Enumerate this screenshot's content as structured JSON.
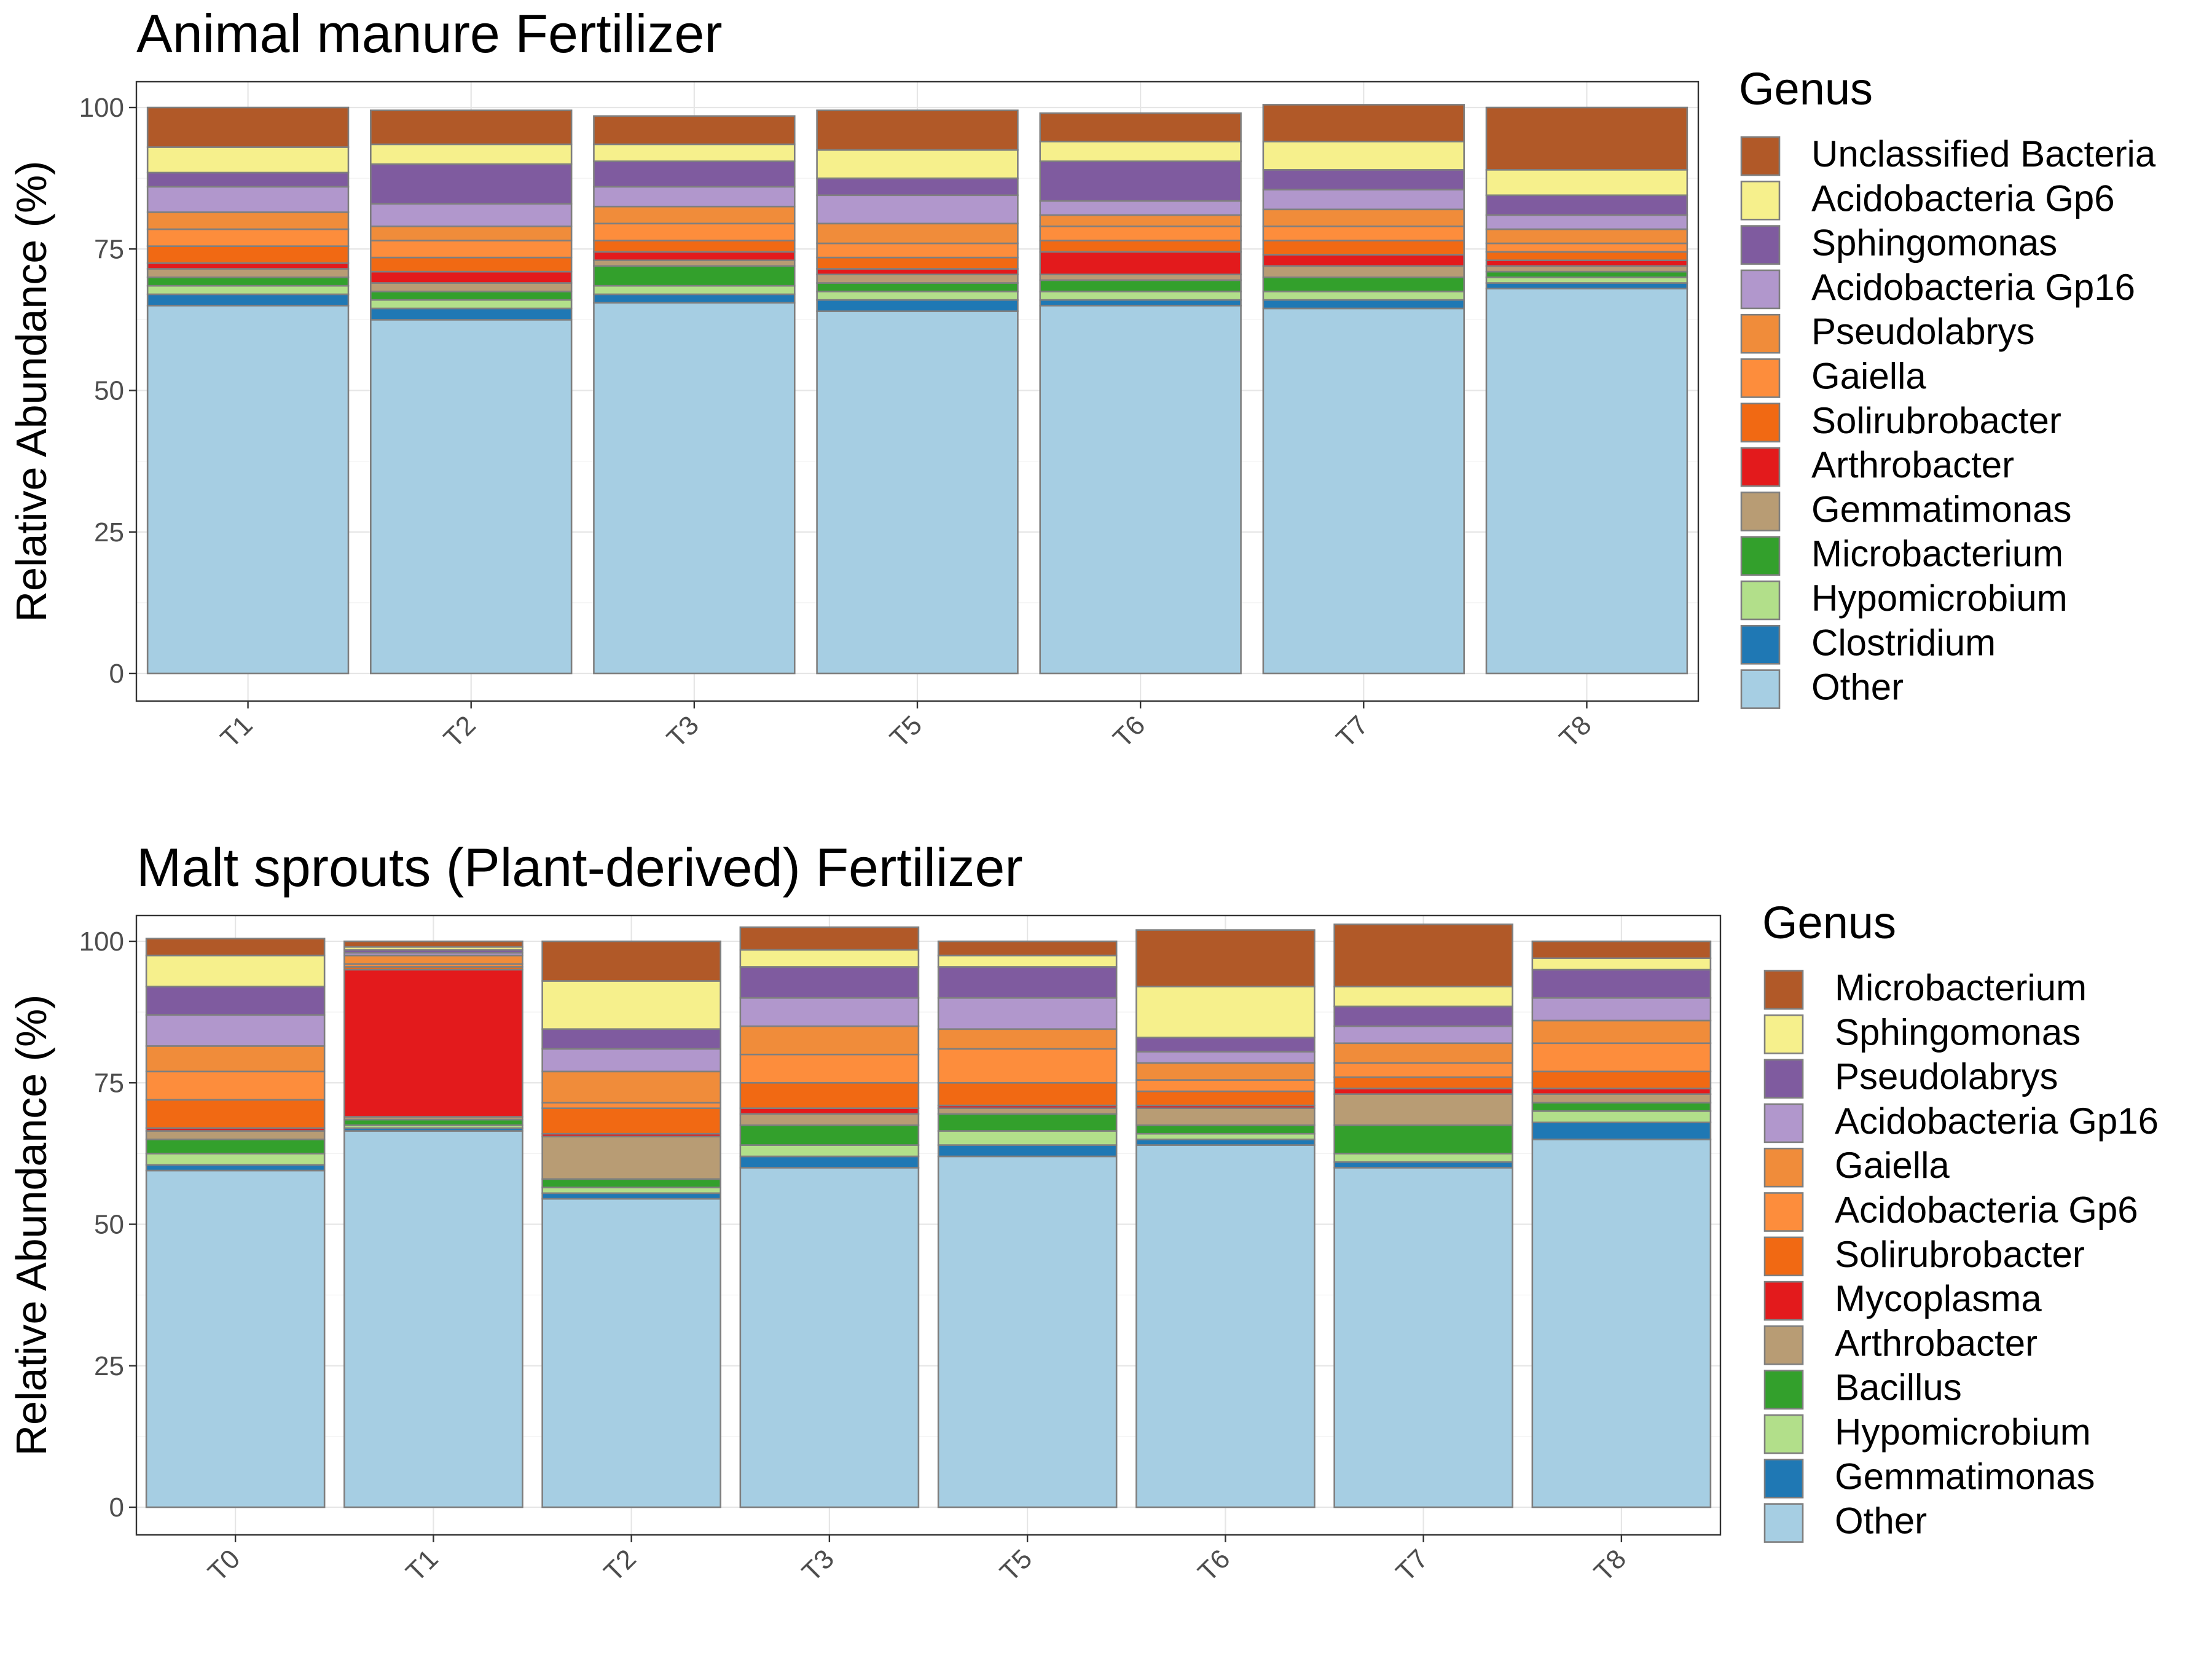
{
  "chart_data": [
    {
      "type": "bar",
      "stacked": true,
      "title": "Animal manure Fertilizer",
      "xlabel": "",
      "ylabel": "Relative Abundance (%)",
      "ylim": [
        0,
        100
      ],
      "yticks": [
        "0",
        "25",
        "50",
        "75",
        "100"
      ],
      "grid": true,
      "legend": {
        "title": "Genus",
        "placement": "right"
      },
      "categories": [
        "T1",
        "T2",
        "T3",
        "T5",
        "T6",
        "T7",
        "T8"
      ],
      "series": [
        {
          "name": "Other",
          "color": "#a6cee3",
          "values": [
            65.0,
            62.5,
            65.5,
            64.0,
            65.0,
            64.5,
            68.0
          ]
        },
        {
          "name": "Clostridium",
          "color": "#1f78b4",
          "values": [
            2.0,
            2.0,
            1.5,
            2.0,
            1.0,
            1.5,
            1.0
          ]
        },
        {
          "name": "Hypomicrobium",
          "color": "#b2df8a",
          "values": [
            1.5,
            1.5,
            1.5,
            1.5,
            1.5,
            1.5,
            1.0
          ]
        },
        {
          "name": "Microbacterium",
          "color": "#33a02c",
          "values": [
            1.5,
            1.5,
            3.5,
            1.5,
            2.0,
            2.5,
            1.0
          ]
        },
        {
          "name": "Gemmatimonas",
          "color": "#b89c74",
          "values": [
            1.5,
            1.5,
            1.0,
            1.5,
            1.0,
            2.0,
            1.0
          ]
        },
        {
          "name": "Arthrobacter",
          "color": "#e31a1c",
          "values": [
            1.0,
            2.0,
            1.5,
            1.0,
            4.0,
            2.0,
            1.0
          ]
        },
        {
          "name": "Solirubrobacter",
          "color": "#f16913",
          "values": [
            3.0,
            2.5,
            2.0,
            2.0,
            2.0,
            2.5,
            1.5
          ]
        },
        {
          "name": "Gaiella",
          "color": "#fd8d3c",
          "values": [
            3.0,
            3.0,
            3.0,
            2.5,
            2.5,
            2.5,
            1.5
          ]
        },
        {
          "name": "Pseudolabrys",
          "color": "#f08c3a",
          "values": [
            3.0,
            2.5,
            3.0,
            3.5,
            2.0,
            3.0,
            2.5
          ]
        },
        {
          "name": "Acidobacteria Gp16",
          "color": "#b197cc",
          "values": [
            4.5,
            4.0,
            3.5,
            5.0,
            2.5,
            3.5,
            2.5
          ]
        },
        {
          "name": "Sphingomonas",
          "color": "#7f5b9f",
          "values": [
            2.5,
            7.0,
            4.5,
            3.0,
            7.0,
            3.5,
            3.5
          ]
        },
        {
          "name": "Acidobacteria Gp6",
          "color": "#f6f08c",
          "values": [
            4.5,
            3.5,
            3.0,
            5.0,
            3.5,
            5.0,
            4.5
          ]
        },
        {
          "name": "Unclassified Bacteria",
          "color": "#b15928",
          "values": [
            7.0,
            6.0,
            5.0,
            7.0,
            5.0,
            6.5,
            11.0
          ]
        }
      ]
    },
    {
      "type": "bar",
      "stacked": true,
      "title": "Malt sprouts (Plant-derived) Fertilizer",
      "xlabel": "",
      "ylabel": "Relative Abundance (%)",
      "ylim": [
        0,
        100
      ],
      "yticks": [
        "0",
        "25",
        "50",
        "75",
        "100"
      ],
      "grid": true,
      "legend": {
        "title": "Genus",
        "placement": "right"
      },
      "categories": [
        "T0",
        "T1",
        "T2",
        "T3",
        "T5",
        "T6",
        "T7",
        "T8"
      ],
      "series": [
        {
          "name": "Other",
          "color": "#a6cee3",
          "values": [
            59.5,
            66.5,
            54.5,
            60.0,
            62.0,
            64.0,
            60.0,
            65.0
          ]
        },
        {
          "name": "Gemmatimonas",
          "color": "#1f78b4",
          "values": [
            1.0,
            0.5,
            1.0,
            2.0,
            2.0,
            1.0,
            1.0,
            3.0
          ]
        },
        {
          "name": "Hypomicrobium",
          "color": "#b2df8a",
          "values": [
            2.0,
            0.5,
            1.0,
            2.0,
            2.5,
            1.0,
            1.5,
            2.0
          ]
        },
        {
          "name": "Bacillus",
          "color": "#33a02c",
          "values": [
            2.5,
            1.0,
            1.5,
            3.5,
            3.0,
            1.5,
            5.0,
            1.5
          ]
        },
        {
          "name": "Arthrobacter",
          "color": "#b89c74",
          "values": [
            1.5,
            0.5,
            7.5,
            2.0,
            1.0,
            3.0,
            5.5,
            1.5
          ]
        },
        {
          "name": "Mycoplasma",
          "color": "#e31a1c",
          "values": [
            0.5,
            26.0,
            0.5,
            1.0,
            0.5,
            0.5,
            1.0,
            1.0
          ]
        },
        {
          "name": "Solirubrobacter",
          "color": "#f16913",
          "values": [
            5.0,
            0.5,
            4.5,
            4.5,
            4.0,
            2.5,
            2.0,
            3.0
          ]
        },
        {
          "name": "Acidobacteria Gp6",
          "color": "#fd8d3c",
          "values": [
            5.0,
            0.5,
            1.0,
            5.0,
            6.0,
            2.0,
            2.5,
            5.0
          ]
        },
        {
          "name": "Gaiella",
          "color": "#f08c3a",
          "values": [
            4.5,
            1.5,
            5.5,
            5.0,
            3.5,
            3.0,
            3.5,
            4.0
          ]
        },
        {
          "name": "Acidobacteria Gp16",
          "color": "#b197cc",
          "values": [
            5.5,
            0.5,
            4.0,
            5.0,
            5.5,
            2.0,
            3.0,
            4.0
          ]
        },
        {
          "name": "Pseudolabrys",
          "color": "#7f5b9f",
          "values": [
            5.0,
            0.5,
            3.5,
            5.5,
            5.5,
            2.5,
            3.5,
            5.0
          ]
        },
        {
          "name": "Sphingomonas",
          "color": "#f6f08c",
          "values": [
            5.5,
            0.5,
            8.5,
            3.0,
            2.0,
            9.0,
            3.5,
            2.0
          ]
        },
        {
          "name": "Microbacterium",
          "color": "#b15928",
          "values": [
            3.0,
            1.0,
            7.0,
            4.0,
            2.5,
            10.0,
            11.0,
            3.0
          ]
        }
      ]
    }
  ]
}
